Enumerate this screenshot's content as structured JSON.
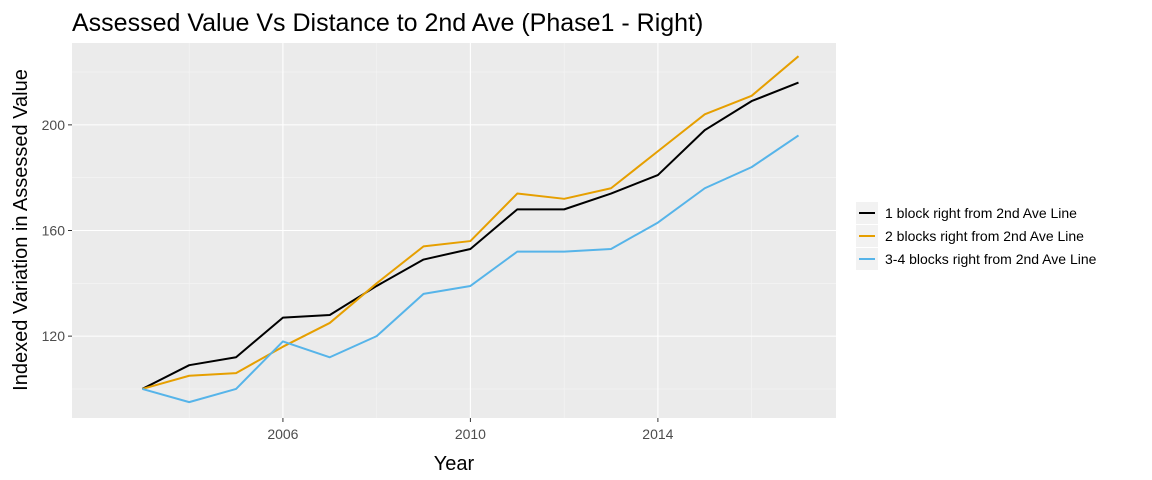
{
  "chart_data": {
    "type": "line",
    "title": "Assessed Value Vs Distance to 2nd Ave (Phase1 - Right)",
    "xlabel": "Year",
    "ylabel": "Indexed Variation in Assessed Value",
    "x": [
      2003,
      2004,
      2005,
      2006,
      2007,
      2008,
      2009,
      2010,
      2011,
      2012,
      2013,
      2014,
      2015,
      2016,
      2017
    ],
    "xlim": [
      2001.5,
      2017.8
    ],
    "ylim": [
      89,
      231
    ],
    "xticks": [
      2006,
      2010,
      2014
    ],
    "xtick_labels": [
      "2006",
      "2010",
      "2014"
    ],
    "yticks": [
      120,
      160,
      200
    ],
    "ytick_labels": [
      "120",
      "160",
      "200"
    ],
    "grid": true,
    "legend_position": "right",
    "series": [
      {
        "name": "1 block right from 2nd Ave Line",
        "color": "#000000",
        "values": [
          100,
          109,
          112,
          127,
          128,
          139,
          149,
          153,
          168,
          168,
          174,
          181,
          198,
          209,
          216
        ]
      },
      {
        "name": "2 blocks right from 2nd Ave Line",
        "color": "#E69F00",
        "values": [
          100,
          105,
          106,
          116,
          125,
          140,
          154,
          156,
          174,
          172,
          176,
          190,
          204,
          211,
          226
        ]
      },
      {
        "name": "3-4 blocks right from 2nd Ave Line",
        "color": "#56B4E9",
        "values": [
          100,
          95,
          100,
          118,
          112,
          120,
          136,
          139,
          152,
          152,
          153,
          163,
          176,
          184,
          196
        ]
      }
    ]
  }
}
